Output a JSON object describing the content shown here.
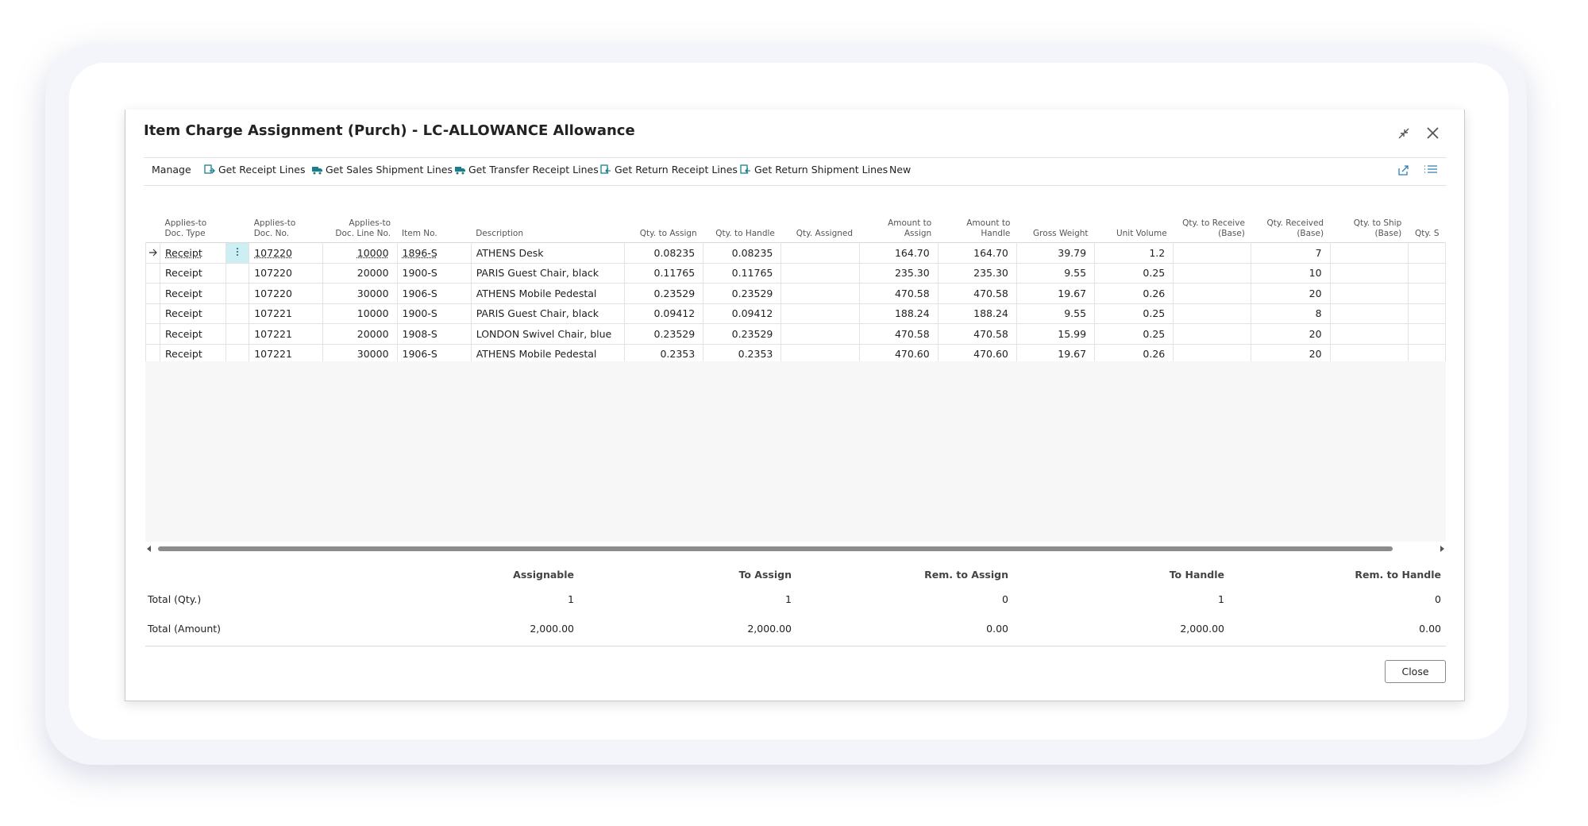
{
  "title": "Item Charge Assignment (Purch) - LC-ALLOWANCE Allowance",
  "actions": [
    "Manage",
    "Get Receipt Lines",
    "Get Sales Shipment Lines",
    "Get Transfer Receipt Lines",
    "Get Return Receipt Lines",
    "Get Return Shipment Lines",
    "New"
  ],
  "table": {
    "columns": [
      [
        "Applies-to",
        "Doc. Type"
      ],
      [
        "Applies-to",
        "Doc. No."
      ],
      [
        "Applies-to",
        "Doc. Line No."
      ],
      [
        "Item No."
      ],
      [
        "Description"
      ],
      [
        "Qty. to Assign"
      ],
      [
        "Qty. to Handle"
      ],
      [
        "Qty. Assigned"
      ],
      [
        "Amount to",
        "Assign"
      ],
      [
        "Amount to",
        "Handle"
      ],
      [
        "Gross Weight"
      ],
      [
        "Unit Volume"
      ],
      [
        "Qty. to Receive",
        "(Base)"
      ],
      [
        "Qty. Received",
        "(Base)"
      ],
      [
        "Qty. to Ship",
        "(Base)"
      ],
      [
        "Qty. S"
      ]
    ],
    "rows": [
      [
        "Receipt",
        "107220",
        "10000",
        "1896-S",
        "ATHENS Desk",
        "0.08235",
        "0.08235",
        null,
        "164.70",
        "164.70",
        "39.79",
        "1.2",
        null,
        "7",
        null,
        null
      ],
      [
        "Receipt",
        "107220",
        "20000",
        "1900-S",
        "PARIS Guest Chair, black",
        "0.11765",
        "0.11765",
        null,
        "235.30",
        "235.30",
        "9.55",
        "0.25",
        null,
        "10",
        null,
        null
      ],
      [
        "Receipt",
        "107220",
        "30000",
        "1906-S",
        "ATHENS Mobile Pedestal",
        "0.23529",
        "0.23529",
        null,
        "470.58",
        "470.58",
        "19.67",
        "0.26",
        null,
        "20",
        null,
        null
      ],
      [
        "Receipt",
        "107221",
        "10000",
        "1900-S",
        "PARIS Guest Chair, black",
        "0.09412",
        "0.09412",
        null,
        "188.24",
        "188.24",
        "9.55",
        "0.25",
        null,
        "8",
        null,
        null
      ],
      [
        "Receipt",
        "107221",
        "20000",
        "1908-S",
        "LONDON Swivel Chair, blue",
        "0.23529",
        "0.23529",
        null,
        "470.58",
        "470.58",
        "15.99",
        "0.25",
        null,
        "20",
        null,
        null
      ],
      [
        "Receipt",
        "107221",
        "30000",
        "1906-S",
        "ATHENS Mobile Pedestal",
        "0.2353",
        "0.2353",
        null,
        "470.60",
        "470.60",
        "19.67",
        "0.26",
        null,
        "20",
        null,
        null
      ]
    ]
  },
  "totals": {
    "headers": [
      "Assignable",
      "To Assign",
      "Rem. to Assign",
      "To Handle",
      "Rem. to Handle"
    ],
    "rows": [
      {
        "label": "Total (Qty.)",
        "values": [
          "1",
          "1",
          "0",
          "1",
          "0"
        ]
      },
      {
        "label": "Total (Amount)",
        "values": [
          "2,000.00",
          "2,000.00",
          "0.00",
          "2,000.00",
          "0.00"
        ]
      }
    ]
  },
  "close_button": "Close"
}
